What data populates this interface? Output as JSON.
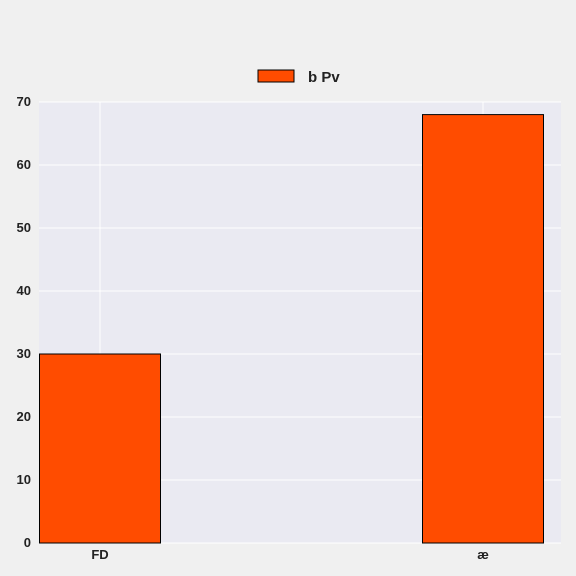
{
  "chart_data": {
    "type": "bar",
    "categories": [
      "FD",
      "æ"
    ],
    "series": [
      {
        "name": "b Pv",
        "values": [
          30,
          68
        ],
        "color": "#ff4c00"
      }
    ],
    "ylim": [
      0,
      70
    ],
    "yticks": [
      0,
      10,
      20,
      30,
      40,
      50,
      60,
      70
    ],
    "grid": true,
    "legend": "top-center",
    "background": "#eaeaf2",
    "title": "",
    "xlabel": "",
    "ylabel": ""
  }
}
